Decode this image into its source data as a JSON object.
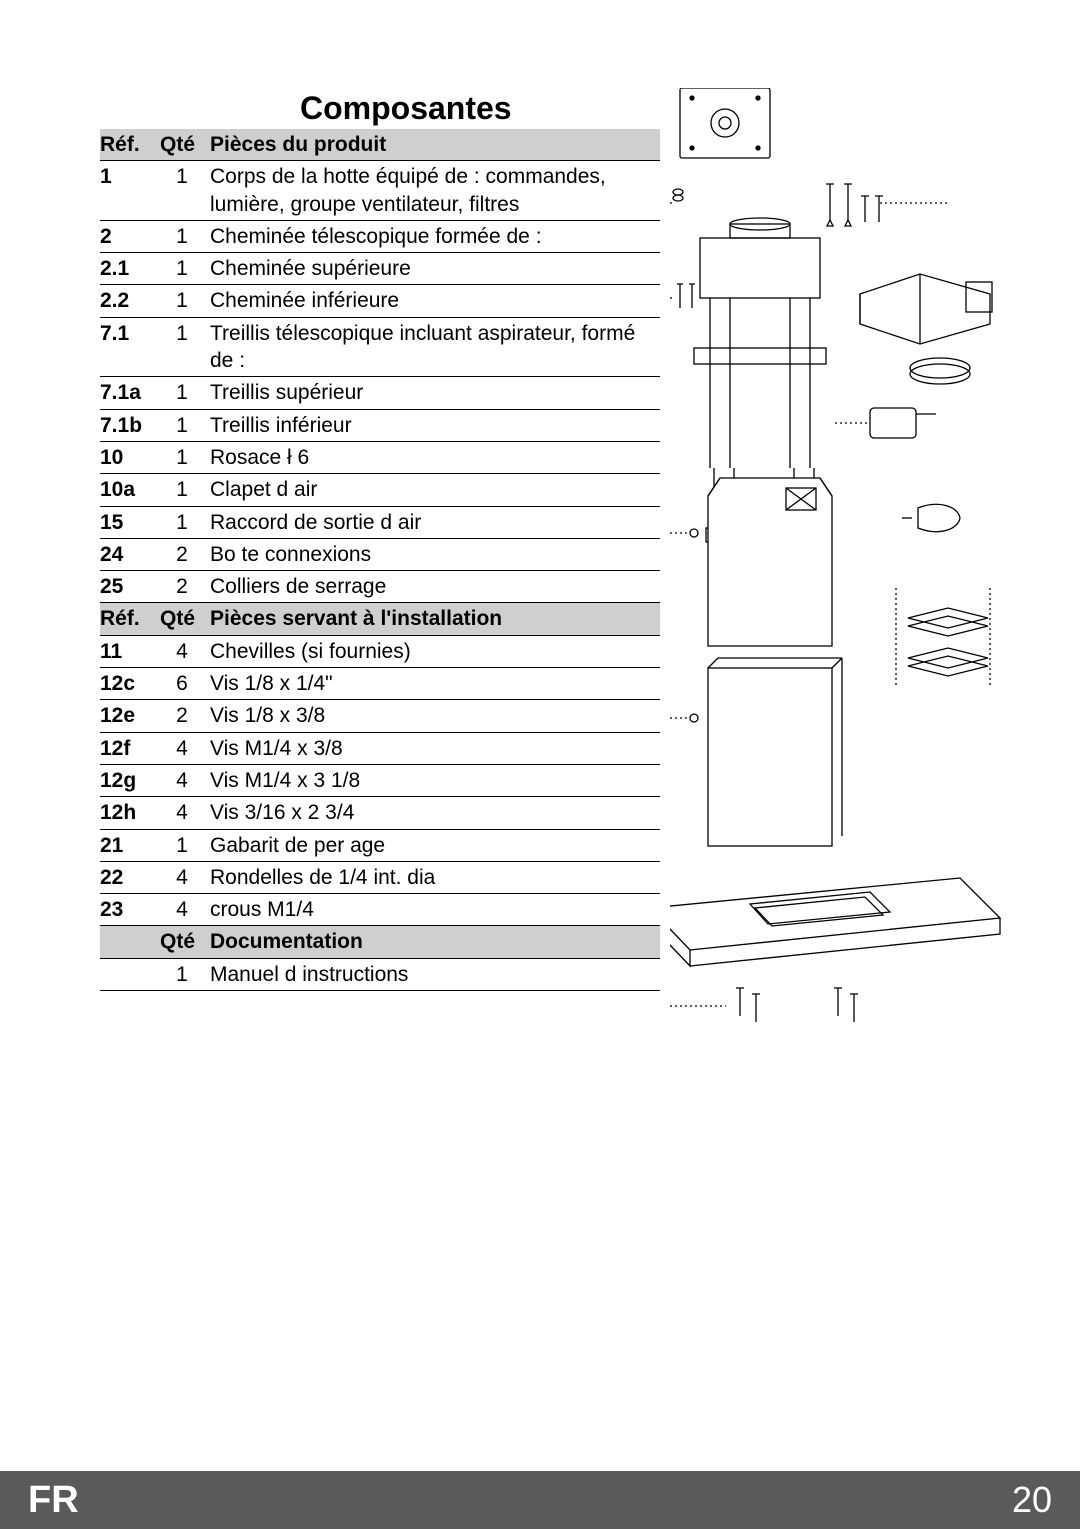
{
  "title": "Composantes",
  "columns": {
    "ref": "Réf.",
    "qty": "Qté"
  },
  "sections": [
    {
      "header": "Pièces du produit",
      "rows": [
        {
          "ref": "1",
          "qty": "1",
          "desc": "Corps de la hotte équipé de : commandes, lumière, groupe ventilateur, filtres"
        },
        {
          "ref": "2",
          "qty": "1",
          "desc": "Cheminée télescopique formée de :"
        },
        {
          "ref": "2.1",
          "qty": "1",
          "desc": "Cheminée supérieure"
        },
        {
          "ref": "2.2",
          "qty": "1",
          "desc": "Cheminée inférieure"
        },
        {
          "ref": "7.1",
          "qty": "1",
          "desc": "Treillis télescopique incluant aspirateur, formé de :"
        },
        {
          "ref": "7.1a",
          "qty": "1",
          "desc": "Treillis supérieur"
        },
        {
          "ref": "7.1b",
          "qty": "1",
          "desc": "Treillis inférieur"
        },
        {
          "ref": "10",
          "qty": "1",
          "desc": "Rosace ł 6"
        },
        {
          "ref": "10a",
          "qty": "1",
          "desc": "Clapet d air"
        },
        {
          "ref": "15",
          "qty": "1",
          "desc": "Raccord de sortie d air"
        },
        {
          "ref": "24",
          "qty": "2",
          "desc": "Bo te connexions"
        },
        {
          "ref": "25",
          "qty": "2",
          "desc": "Colliers de serrage"
        }
      ]
    },
    {
      "header": "Pièces servant à l'installation",
      "rows": [
        {
          "ref": "11",
          "qty": "4",
          "desc": "Chevilles (si fournies)"
        },
        {
          "ref": "12c",
          "qty": "6",
          "desc": "Vis 1/8  x 1/4\""
        },
        {
          "ref": "12e",
          "qty": "2",
          "desc": "Vis 1/8  x 3/8"
        },
        {
          "ref": "12f",
          "qty": "4",
          "desc": "Vis M1/4  x 3/8"
        },
        {
          "ref": "12g",
          "qty": "4",
          "desc": "Vis M1/4  x 3  1/8"
        },
        {
          "ref": "12h",
          "qty": "4",
          "desc": "Vis 3/16  x 2  3/4"
        },
        {
          "ref": "21",
          "qty": "1",
          "desc": "Gabarit de per age"
        },
        {
          "ref": "22",
          "qty": "4",
          "desc": "Rondelles de 1/4   int. dia"
        },
        {
          "ref": "23",
          "qty": "4",
          "desc": "crous M1/4"
        }
      ]
    },
    {
      "header": "Documentation",
      "noRef": true,
      "rows": [
        {
          "ref": "",
          "qty": "1",
          "desc": "Manuel d instructions"
        }
      ]
    }
  ],
  "footer": {
    "lang": "FR",
    "page": "20"
  },
  "colors": {
    "headerBg": "#cfcfcf",
    "footerBg": "#5a5a5a",
    "text": "#000000",
    "footerText": "#ffffff",
    "line": "#000000"
  },
  "typography": {
    "title_fontsize": 32,
    "body_fontsize": 21,
    "footer_fontsize": 38
  }
}
